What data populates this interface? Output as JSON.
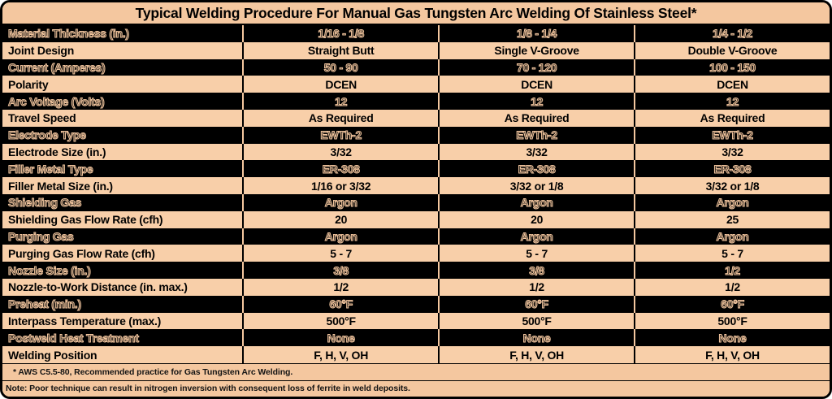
{
  "title": "Typical Welding Procedure For Manual Gas Tungsten Arc Welding Of Stainless Steel*",
  "table": {
    "rows": [
      {
        "label": "Material Thickness (in.)",
        "values": [
          "1/16 - 1/8",
          "1/8 - 1/4",
          "1/4 - 1/2"
        ],
        "shade": "dark"
      },
      {
        "label": "Joint Design",
        "values": [
          "Straight Butt",
          "Single V-Groove",
          "Double V-Groove"
        ],
        "shade": "light"
      },
      {
        "label": "Current (Amperes)",
        "values": [
          "50 - 90",
          "70 - 120",
          "100 - 150"
        ],
        "shade": "dark"
      },
      {
        "label": "Polarity",
        "values": [
          "DCEN",
          "DCEN",
          "DCEN"
        ],
        "shade": "light"
      },
      {
        "label": "Arc Voltage (Volts)",
        "values": [
          "12",
          "12",
          "12"
        ],
        "shade": "dark"
      },
      {
        "label": "Travel Speed",
        "values": [
          "As Required",
          "As Required",
          "As Required"
        ],
        "shade": "light"
      },
      {
        "label": "Electrode Type",
        "values": [
          "EWTh-2",
          "EWTh-2",
          "EWTh-2"
        ],
        "shade": "dark"
      },
      {
        "label": "Electrode Size (in.)",
        "values": [
          "3/32",
          "3/32",
          "3/32"
        ],
        "shade": "light"
      },
      {
        "label": "Filler Metal Type",
        "values": [
          "ER-308",
          "ER-308",
          "ER-308"
        ],
        "shade": "dark"
      },
      {
        "label": "Filler Metal Size (in.)",
        "values": [
          "1/16 or 3/32",
          "3/32 or 1/8",
          "3/32 or 1/8"
        ],
        "shade": "light"
      },
      {
        "label": "Shielding Gas",
        "values": [
          "Argon",
          "Argon",
          "Argon"
        ],
        "shade": "dark"
      },
      {
        "label": "Shielding Gas Flow Rate (cfh)",
        "values": [
          "20",
          "20",
          "25"
        ],
        "shade": "light"
      },
      {
        "label": "Purging Gas",
        "values": [
          "Argon",
          "Argon",
          "Argon"
        ],
        "shade": "dark"
      },
      {
        "label": "Purging Gas Flow Rate (cfh)",
        "values": [
          "5 - 7",
          "5 - 7",
          "5 - 7"
        ],
        "shade": "light"
      },
      {
        "label": "Nozzle Size (in.)",
        "values": [
          "3/8",
          "3/8",
          "1/2"
        ],
        "shade": "dark"
      },
      {
        "label": "Nozzle-to-Work Distance (in. max.)",
        "values": [
          "1/2",
          "1/2",
          "1/2"
        ],
        "shade": "light"
      },
      {
        "label": "Preheat (min.)",
        "values": [
          "60°F",
          "60°F",
          "60°F"
        ],
        "shade": "dark"
      },
      {
        "label": "Interpass Temperature (max.)",
        "values": [
          "500°F",
          "500°F",
          "500°F"
        ],
        "shade": "light"
      },
      {
        "label": "Postweld Heat Treatment",
        "values": [
          "None",
          "None",
          "None"
        ],
        "shade": "dark"
      },
      {
        "label": "Welding Position",
        "values": [
          "F, H, V, OH",
          "F, H, V, OH",
          "F, H, V, OH"
        ],
        "shade": "light"
      }
    ]
  },
  "footnotes": {
    "aws": "* AWS C5.5-80, Recommended practice for Gas Tungsten Arc Welding.",
    "note": "Note: Poor technique can result in nitrogen inversion with consequent loss of ferrite in weld deposits."
  },
  "colors": {
    "peach": "#f4c79f",
    "row_light": "#f8cfa9",
    "black": "#000000"
  }
}
